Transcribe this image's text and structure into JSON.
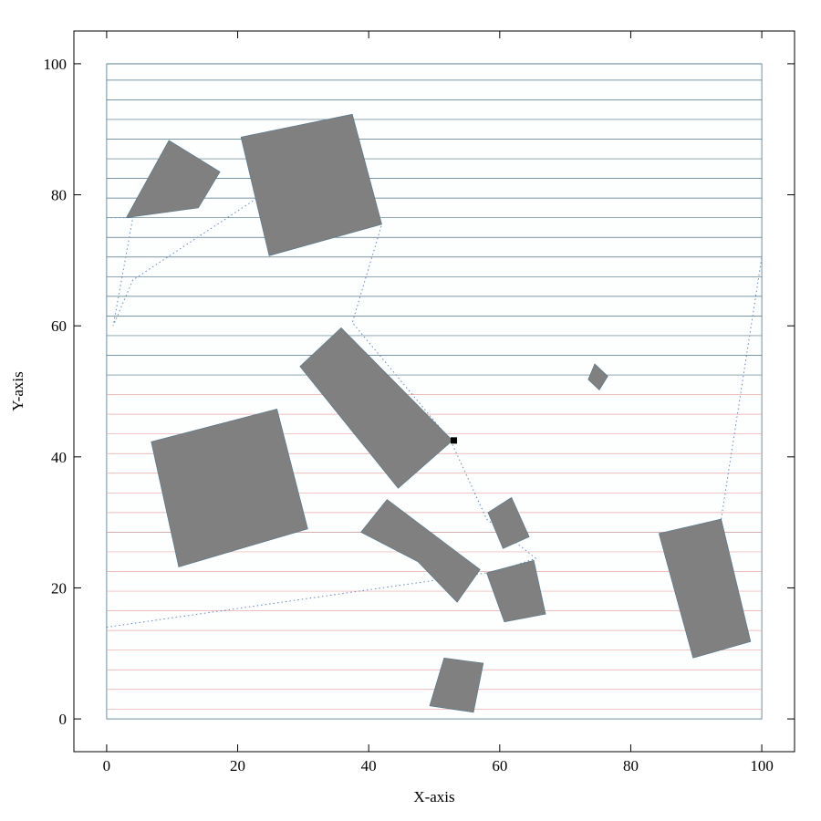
{
  "chart_data": {
    "type": "diagram",
    "xlabel": "X-axis",
    "ylabel": "Y-axis",
    "xlim": [
      -5,
      105
    ],
    "ylim": [
      -5,
      105
    ],
    "x_ticks": [
      0,
      20,
      40,
      60,
      80,
      100
    ],
    "y_ticks": [
      0,
      20,
      40,
      60,
      80,
      100
    ],
    "x_tick_labels": [
      "0",
      "20",
      "40",
      "60",
      "80",
      "100"
    ],
    "y_tick_labels": [
      "0",
      "20",
      "40",
      "60",
      "80",
      "100"
    ],
    "workspace": [
      0,
      100,
      0,
      100
    ],
    "colors": {
      "obstacle": "#808080",
      "sweep_blue": "#4e7489",
      "sweep_red": "#e8a8a8",
      "trajectory": "#6688bb",
      "start_marker": "#000000"
    },
    "start_point": [
      53,
      42.5
    ],
    "obstacles": [
      [
        [
          9.5,
          88.3
        ],
        [
          17.3,
          83.5
        ],
        [
          14,
          78
        ],
        [
          3,
          76.5
        ]
      ],
      [
        [
          20.5,
          88.8
        ],
        [
          37.5,
          92.3
        ],
        [
          42,
          75.5
        ],
        [
          24.8,
          70.7
        ]
      ],
      [
        [
          29.5,
          53.8
        ],
        [
          35.8,
          59.7
        ],
        [
          52.8,
          42.5
        ],
        [
          44.5,
          35.2
        ]
      ],
      [
        [
          74.5,
          54.2
        ],
        [
          76.5,
          52.3
        ],
        [
          75.2,
          50.2
        ],
        [
          73.5,
          51.8
        ]
      ],
      [
        [
          6.8,
          42.3
        ],
        [
          26,
          47.3
        ],
        [
          30.7,
          29
        ],
        [
          11,
          23.2
        ]
      ],
      [
        [
          42.8,
          33.5
        ],
        [
          38.8,
          28.5
        ],
        [
          47.5,
          24
        ],
        [
          53.5,
          17.8
        ],
        [
          57,
          22.8
        ]
      ],
      [
        [
          58.2,
          31.5
        ],
        [
          61.8,
          33.8
        ],
        [
          64.5,
          27.8
        ],
        [
          60.5,
          26
        ]
      ],
      [
        [
          58,
          22.3
        ],
        [
          65.2,
          24.2
        ],
        [
          67,
          16
        ],
        [
          60.7,
          14.8
        ]
      ],
      [
        [
          84.3,
          28.3
        ],
        [
          93.8,
          30.5
        ],
        [
          98.3,
          11.8
        ],
        [
          89.5,
          9.3
        ]
      ],
      [
        [
          51.5,
          9.3
        ],
        [
          57.5,
          8.5
        ],
        [
          56,
          1
        ],
        [
          49.3,
          2
        ]
      ]
    ],
    "blue_sweep_y": [
      100,
      97.5,
      94.5,
      91.5,
      88.5,
      85.5,
      82.5,
      79.5,
      76.5,
      73.5,
      70.5,
      67.5,
      64.5,
      61.5,
      58.5,
      55.5,
      52.5,
      28.5
    ],
    "red_sweep_y": [
      49.5,
      46.5,
      43.5,
      40.5,
      37.5,
      34.5,
      31.5,
      28.5,
      25.5,
      22.5,
      19.5,
      16.5,
      13.5,
      10.5,
      7.5,
      4.5,
      1.5
    ],
    "trajectory": [
      [
        0,
        76.5
      ],
      [
        4,
        76.5
      ],
      [
        1,
        60
      ],
      [
        4,
        67
      ],
      [
        24.5,
        80.5
      ],
      [
        42,
        75.5
      ],
      [
        37.5,
        60.5
      ],
      [
        52.5,
        42.5
      ],
      [
        58,
        30.5
      ],
      [
        65.5,
        24.5
      ],
      [
        59.5,
        22.5
      ],
      [
        0,
        14
      ]
    ],
    "trajectory_right": [
      [
        93.8,
        30.5
      ],
      [
        100,
        70.5
      ]
    ]
  }
}
